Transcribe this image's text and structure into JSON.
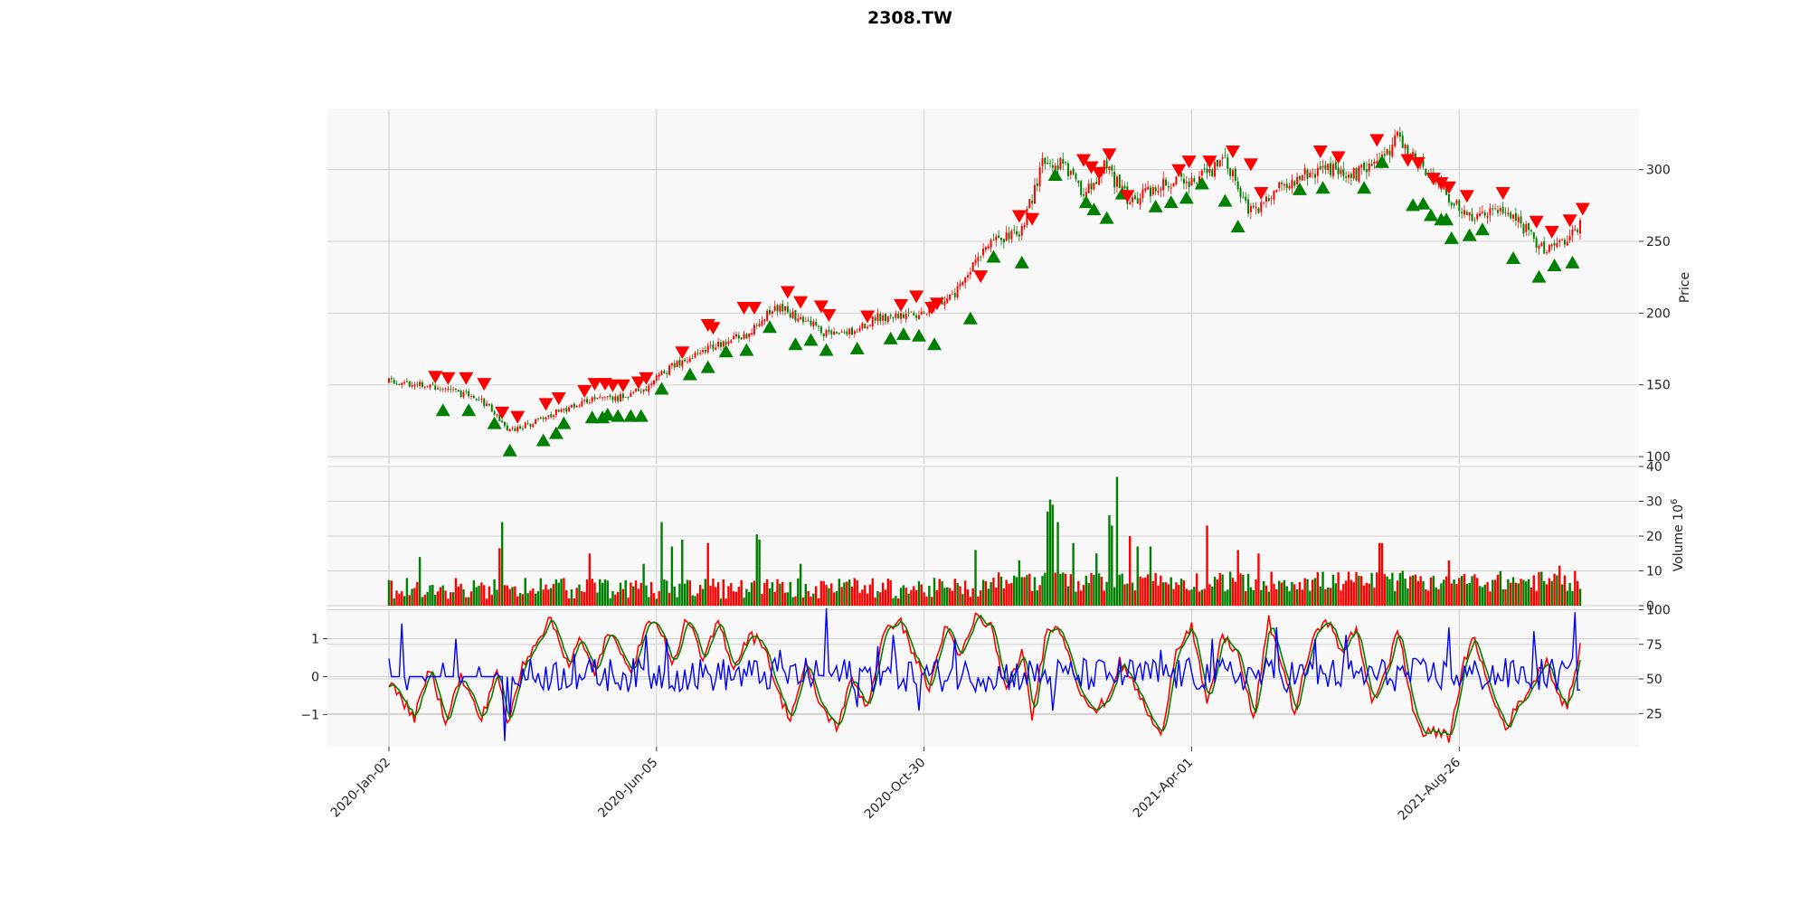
{
  "chart_data": {
    "type": "candlestick",
    "title": "2308.TW",
    "x_tick_labels": [
      "2020-Jan-02",
      "2020-Jun-05",
      "2020-Oct-30",
      "2021-Apr-01",
      "2021-Aug-26"
    ],
    "x_tick_index": [
      0,
      104,
      208,
      312,
      416
    ],
    "n_bars": 464,
    "colors": {
      "up": "#ff0000",
      "down": "#008000",
      "buy_marker": "#008000",
      "sell_marker": "#ff0000",
      "line_k": "#ff0000",
      "line_d": "#008000",
      "line_osc": "#0000ff",
      "grid": "#cfcfcf",
      "panel_bg": "#f8f8f8"
    },
    "grid": true,
    "price_panel": {
      "ylabel": "Price",
      "ylim": [
        95,
        342
      ],
      "yticks": [
        100,
        150,
        200,
        250,
        300
      ],
      "close_anchors": [
        {
          "i": 0,
          "v": 152
        },
        {
          "i": 8,
          "v": 150
        },
        {
          "i": 16,
          "v": 149
        },
        {
          "i": 25,
          "v": 145
        },
        {
          "i": 35,
          "v": 141
        },
        {
          "i": 41,
          "v": 130
        },
        {
          "i": 46,
          "v": 117
        },
        {
          "i": 58,
          "v": 125
        },
        {
          "i": 68,
          "v": 133
        },
        {
          "i": 78,
          "v": 139
        },
        {
          "i": 88,
          "v": 140
        },
        {
          "i": 100,
          "v": 148
        },
        {
          "i": 110,
          "v": 163
        },
        {
          "i": 125,
          "v": 176
        },
        {
          "i": 140,
          "v": 186
        },
        {
          "i": 150,
          "v": 205
        },
        {
          "i": 160,
          "v": 196
        },
        {
          "i": 170,
          "v": 186
        },
        {
          "i": 180,
          "v": 188
        },
        {
          "i": 190,
          "v": 197
        },
        {
          "i": 205,
          "v": 198
        },
        {
          "i": 220,
          "v": 214
        },
        {
          "i": 232,
          "v": 248
        },
        {
          "i": 245,
          "v": 255
        },
        {
          "i": 255,
          "v": 308
        },
        {
          "i": 262,
          "v": 302
        },
        {
          "i": 270,
          "v": 282
        },
        {
          "i": 278,
          "v": 302
        },
        {
          "i": 288,
          "v": 278
        },
        {
          "i": 300,
          "v": 290
        },
        {
          "i": 315,
          "v": 294
        },
        {
          "i": 325,
          "v": 305
        },
        {
          "i": 335,
          "v": 270
        },
        {
          "i": 350,
          "v": 292
        },
        {
          "i": 365,
          "v": 302
        },
        {
          "i": 375,
          "v": 296
        },
        {
          "i": 384,
          "v": 304
        },
        {
          "i": 392,
          "v": 321
        },
        {
          "i": 400,
          "v": 306
        },
        {
          "i": 410,
          "v": 285
        },
        {
          "i": 420,
          "v": 268
        },
        {
          "i": 430,
          "v": 274
        },
        {
          "i": 440,
          "v": 262
        },
        {
          "i": 448,
          "v": 245
        },
        {
          "i": 456,
          "v": 250
        },
        {
          "i": 463,
          "v": 262
        }
      ],
      "buy_markers": [
        {
          "i": 21,
          "v": 132
        },
        {
          "i": 31,
          "v": 132
        },
        {
          "i": 41,
          "v": 123
        },
        {
          "i": 47,
          "v": 104
        },
        {
          "i": 60,
          "v": 111
        },
        {
          "i": 65,
          "v": 116
        },
        {
          "i": 68,
          "v": 123
        },
        {
          "i": 79,
          "v": 127
        },
        {
          "i": 83,
          "v": 127
        },
        {
          "i": 85,
          "v": 129
        },
        {
          "i": 89,
          "v": 128
        },
        {
          "i": 94,
          "v": 128
        },
        {
          "i": 98,
          "v": 128
        },
        {
          "i": 106,
          "v": 147
        },
        {
          "i": 117,
          "v": 157
        },
        {
          "i": 124,
          "v": 162
        },
        {
          "i": 131,
          "v": 173
        },
        {
          "i": 139,
          "v": 174
        },
        {
          "i": 148,
          "v": 190
        },
        {
          "i": 158,
          "v": 178
        },
        {
          "i": 164,
          "v": 181
        },
        {
          "i": 170,
          "v": 174
        },
        {
          "i": 182,
          "v": 175
        },
        {
          "i": 195,
          "v": 182
        },
        {
          "i": 200,
          "v": 185
        },
        {
          "i": 206,
          "v": 184
        },
        {
          "i": 212,
          "v": 178
        },
        {
          "i": 226,
          "v": 196
        },
        {
          "i": 235,
          "v": 239
        },
        {
          "i": 246,
          "v": 235
        },
        {
          "i": 259,
          "v": 296
        },
        {
          "i": 271,
          "v": 277
        },
        {
          "i": 274,
          "v": 272
        },
        {
          "i": 279,
          "v": 266
        },
        {
          "i": 285,
          "v": 283
        },
        {
          "i": 298,
          "v": 274
        },
        {
          "i": 304,
          "v": 277
        },
        {
          "i": 310,
          "v": 280
        },
        {
          "i": 316,
          "v": 290
        },
        {
          "i": 325,
          "v": 278
        },
        {
          "i": 330,
          "v": 260
        },
        {
          "i": 354,
          "v": 286
        },
        {
          "i": 363,
          "v": 287
        },
        {
          "i": 379,
          "v": 287
        },
        {
          "i": 386,
          "v": 305
        },
        {
          "i": 398,
          "v": 275
        },
        {
          "i": 402,
          "v": 276
        },
        {
          "i": 405,
          "v": 268
        },
        {
          "i": 409,
          "v": 265
        },
        {
          "i": 411,
          "v": 265
        },
        {
          "i": 413,
          "v": 252
        },
        {
          "i": 420,
          "v": 254
        },
        {
          "i": 425,
          "v": 258
        },
        {
          "i": 437,
          "v": 238
        },
        {
          "i": 447,
          "v": 225
        },
        {
          "i": 453,
          "v": 233
        },
        {
          "i": 460,
          "v": 235
        }
      ],
      "sell_markers": [
        {
          "i": 18,
          "v": 156
        },
        {
          "i": 23,
          "v": 155
        },
        {
          "i": 30,
          "v": 155
        },
        {
          "i": 37,
          "v": 151
        },
        {
          "i": 44,
          "v": 131
        },
        {
          "i": 50,
          "v": 128
        },
        {
          "i": 61,
          "v": 137
        },
        {
          "i": 66,
          "v": 141
        },
        {
          "i": 76,
          "v": 146
        },
        {
          "i": 80,
          "v": 151
        },
        {
          "i": 84,
          "v": 151
        },
        {
          "i": 87,
          "v": 150
        },
        {
          "i": 91,
          "v": 150
        },
        {
          "i": 97,
          "v": 152
        },
        {
          "i": 100,
          "v": 155
        },
        {
          "i": 114,
          "v": 173
        },
        {
          "i": 124,
          "v": 192
        },
        {
          "i": 126,
          "v": 190
        },
        {
          "i": 138,
          "v": 204
        },
        {
          "i": 142,
          "v": 204
        },
        {
          "i": 155,
          "v": 215
        },
        {
          "i": 160,
          "v": 208
        },
        {
          "i": 168,
          "v": 205
        },
        {
          "i": 171,
          "v": 199
        },
        {
          "i": 186,
          "v": 198
        },
        {
          "i": 199,
          "v": 206
        },
        {
          "i": 205,
          "v": 212
        },
        {
          "i": 211,
          "v": 204
        },
        {
          "i": 213,
          "v": 207
        },
        {
          "i": 230,
          "v": 226
        },
        {
          "i": 245,
          "v": 268
        },
        {
          "i": 250,
          "v": 266
        },
        {
          "i": 270,
          "v": 307
        },
        {
          "i": 273,
          "v": 302
        },
        {
          "i": 276,
          "v": 298
        },
        {
          "i": 280,
          "v": 311
        },
        {
          "i": 287,
          "v": 282
        },
        {
          "i": 307,
          "v": 300
        },
        {
          "i": 311,
          "v": 306
        },
        {
          "i": 319,
          "v": 306
        },
        {
          "i": 328,
          "v": 313
        },
        {
          "i": 335,
          "v": 304
        },
        {
          "i": 339,
          "v": 284
        },
        {
          "i": 362,
          "v": 313
        },
        {
          "i": 369,
          "v": 309
        },
        {
          "i": 384,
          "v": 321
        },
        {
          "i": 396,
          "v": 307
        },
        {
          "i": 400,
          "v": 305
        },
        {
          "i": 406,
          "v": 294
        },
        {
          "i": 409,
          "v": 291
        },
        {
          "i": 412,
          "v": 288
        },
        {
          "i": 419,
          "v": 282
        },
        {
          "i": 433,
          "v": 284
        },
        {
          "i": 446,
          "v": 264
        },
        {
          "i": 452,
          "v": 257
        },
        {
          "i": 459,
          "v": 265
        },
        {
          "i": 464,
          "v": 273
        }
      ]
    },
    "volume_panel": {
      "ylabel": "Volume  10^6",
      "ylim": [
        0,
        40
      ],
      "yticks": [
        0,
        10,
        20,
        30,
        40
      ],
      "spikes": [
        {
          "i": 12,
          "v": 14
        },
        {
          "i": 43,
          "v": 16.5
        },
        {
          "i": 44,
          "v": 24
        },
        {
          "i": 78,
          "v": 15
        },
        {
          "i": 99,
          "v": 12
        },
        {
          "i": 106,
          "v": 24
        },
        {
          "i": 110,
          "v": 17
        },
        {
          "i": 114,
          "v": 19
        },
        {
          "i": 124,
          "v": 18
        },
        {
          "i": 143,
          "v": 20.5
        },
        {
          "i": 144,
          "v": 19
        },
        {
          "i": 160,
          "v": 12
        },
        {
          "i": 228,
          "v": 16
        },
        {
          "i": 245,
          "v": 13
        },
        {
          "i": 256,
          "v": 27
        },
        {
          "i": 257,
          "v": 30.5
        },
        {
          "i": 258,
          "v": 29
        },
        {
          "i": 260,
          "v": 24
        },
        {
          "i": 266,
          "v": 18
        },
        {
          "i": 275,
          "v": 15
        },
        {
          "i": 280,
          "v": 26
        },
        {
          "i": 281,
          "v": 23
        },
        {
          "i": 283,
          "v": 37
        },
        {
          "i": 288,
          "v": 20
        },
        {
          "i": 291,
          "v": 17
        },
        {
          "i": 296,
          "v": 17
        },
        {
          "i": 318,
          "v": 23
        },
        {
          "i": 330,
          "v": 16
        },
        {
          "i": 338,
          "v": 15
        },
        {
          "i": 385,
          "v": 18
        },
        {
          "i": 386,
          "v": 18
        },
        {
          "i": 412,
          "v": 13
        },
        {
          "i": 455,
          "v": 11.5
        }
      ]
    },
    "oscillator_panel": {
      "left_ylim": [
        -1.85,
        1.8
      ],
      "left_yticks": [
        -1,
        0,
        1
      ],
      "right_ylim": [
        1,
        101
      ],
      "right_yticks": [
        25,
        50,
        75,
        100
      ],
      "k_anchors": [
        {
          "i": 0,
          "v": 48
        },
        {
          "i": 10,
          "v": 22
        },
        {
          "i": 16,
          "v": 58
        },
        {
          "i": 22,
          "v": 20
        },
        {
          "i": 28,
          "v": 52
        },
        {
          "i": 36,
          "v": 20
        },
        {
          "i": 42,
          "v": 58
        },
        {
          "i": 46,
          "v": 15
        },
        {
          "i": 52,
          "v": 60
        },
        {
          "i": 58,
          "v": 80
        },
        {
          "i": 63,
          "v": 93
        },
        {
          "i": 70,
          "v": 60
        },
        {
          "i": 74,
          "v": 78
        },
        {
          "i": 80,
          "v": 55
        },
        {
          "i": 85,
          "v": 82
        },
        {
          "i": 90,
          "v": 72
        },
        {
          "i": 95,
          "v": 55
        },
        {
          "i": 100,
          "v": 93
        },
        {
          "i": 106,
          "v": 85
        },
        {
          "i": 110,
          "v": 58
        },
        {
          "i": 116,
          "v": 95
        },
        {
          "i": 122,
          "v": 62
        },
        {
          "i": 128,
          "v": 92
        },
        {
          "i": 134,
          "v": 58
        },
        {
          "i": 140,
          "v": 82
        },
        {
          "i": 146,
          "v": 75
        },
        {
          "i": 151,
          "v": 40
        },
        {
          "i": 156,
          "v": 22
        },
        {
          "i": 162,
          "v": 60
        },
        {
          "i": 168,
          "v": 30
        },
        {
          "i": 174,
          "v": 15
        },
        {
          "i": 180,
          "v": 50
        },
        {
          "i": 186,
          "v": 30
        },
        {
          "i": 192,
          "v": 80
        },
        {
          "i": 198,
          "v": 95
        },
        {
          "i": 204,
          "v": 68
        },
        {
          "i": 210,
          "v": 42
        },
        {
          "i": 216,
          "v": 88
        },
        {
          "i": 222,
          "v": 65
        },
        {
          "i": 228,
          "v": 95
        },
        {
          "i": 234,
          "v": 88
        },
        {
          "i": 240,
          "v": 40
        },
        {
          "i": 246,
          "v": 70
        },
        {
          "i": 250,
          "v": 22
        },
        {
          "i": 256,
          "v": 90
        },
        {
          "i": 262,
          "v": 82
        },
        {
          "i": 268,
          "v": 45
        },
        {
          "i": 274,
          "v": 25
        },
        {
          "i": 280,
          "v": 38
        },
        {
          "i": 284,
          "v": 62
        },
        {
          "i": 290,
          "v": 45
        },
        {
          "i": 295,
          "v": 25
        },
        {
          "i": 300,
          "v": 7
        },
        {
          "i": 306,
          "v": 72
        },
        {
          "i": 312,
          "v": 88
        },
        {
          "i": 318,
          "v": 30
        },
        {
          "i": 324,
          "v": 82
        },
        {
          "i": 330,
          "v": 68
        },
        {
          "i": 336,
          "v": 20
        },
        {
          "i": 342,
          "v": 92
        },
        {
          "i": 348,
          "v": 55
        },
        {
          "i": 352,
          "v": 25
        },
        {
          "i": 358,
          "v": 72
        },
        {
          "i": 364,
          "v": 96
        },
        {
          "i": 370,
          "v": 70
        },
        {
          "i": 376,
          "v": 85
        },
        {
          "i": 382,
          "v": 35
        },
        {
          "i": 388,
          "v": 55
        },
        {
          "i": 392,
          "v": 88
        },
        {
          "i": 398,
          "v": 28
        },
        {
          "i": 402,
          "v": 10
        },
        {
          "i": 408,
          "v": 12
        },
        {
          "i": 412,
          "v": 8
        },
        {
          "i": 418,
          "v": 62
        },
        {
          "i": 422,
          "v": 80
        },
        {
          "i": 428,
          "v": 40
        },
        {
          "i": 434,
          "v": 15
        },
        {
          "i": 438,
          "v": 28
        },
        {
          "i": 444,
          "v": 45
        },
        {
          "i": 450,
          "v": 65
        },
        {
          "i": 454,
          "v": 40
        },
        {
          "i": 458,
          "v": 30
        },
        {
          "i": 461,
          "v": 55
        },
        {
          "i": 463,
          "v": 72
        }
      ],
      "osc_spikes": [
        {
          "i": 5,
          "v": 1.4
        },
        {
          "i": 26,
          "v": 1.0
        },
        {
          "i": 45,
          "v": -1.7
        },
        {
          "i": 47,
          "v": -1.0
        },
        {
          "i": 72,
          "v": 0.6
        },
        {
          "i": 100,
          "v": 1.1
        },
        {
          "i": 108,
          "v": 1.0
        },
        {
          "i": 152,
          "v": 0.7
        },
        {
          "i": 170,
          "v": 1.8
        },
        {
          "i": 182,
          "v": -0.8
        },
        {
          "i": 190,
          "v": 0.8
        },
        {
          "i": 196,
          "v": 1.1
        },
        {
          "i": 206,
          "v": -0.9
        },
        {
          "i": 220,
          "v": 1.0
        },
        {
          "i": 258,
          "v": -0.9
        },
        {
          "i": 300,
          "v": 0.7
        },
        {
          "i": 320,
          "v": 1.0
        },
        {
          "i": 345,
          "v": 1.3
        },
        {
          "i": 360,
          "v": 1.0
        },
        {
          "i": 372,
          "v": 1.1
        },
        {
          "i": 412,
          "v": 1.3
        },
        {
          "i": 445,
          "v": 1.2
        },
        {
          "i": 461,
          "v": 1.7
        }
      ]
    }
  }
}
